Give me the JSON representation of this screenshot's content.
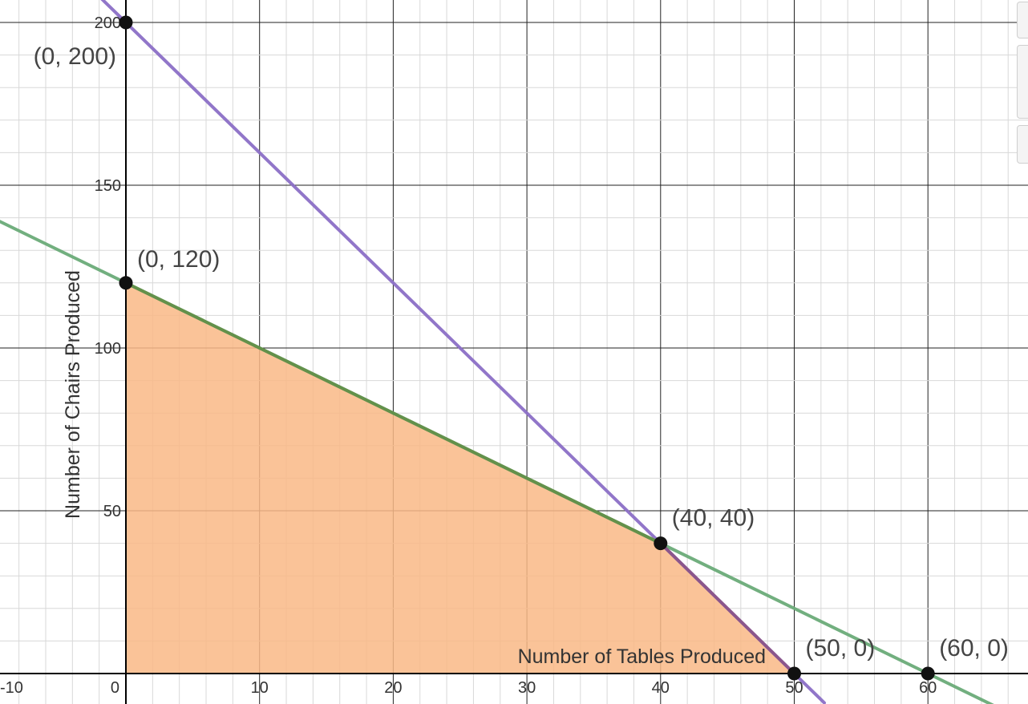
{
  "chart_data": {
    "type": "line",
    "xlabel": "Number of Tables Produced",
    "ylabel": "Number of Chairs Produced",
    "xlim": [
      -10,
      66
    ],
    "ylim": [
      -9,
      208
    ],
    "x_ticks": [
      {
        "value": -10,
        "label": "-10"
      },
      {
        "value": 0,
        "label": "0"
      },
      {
        "value": 10,
        "label": "10"
      },
      {
        "value": 20,
        "label": "20"
      },
      {
        "value": 30,
        "label": "30"
      },
      {
        "value": 40,
        "label": "40"
      },
      {
        "value": 50,
        "label": "50"
      },
      {
        "value": 60,
        "label": "60"
      }
    ],
    "y_ticks": [
      {
        "value": 50,
        "label": "50"
      },
      {
        "value": 100,
        "label": "100"
      },
      {
        "value": 150,
        "label": "150"
      },
      {
        "value": 200,
        "label": "200"
      }
    ],
    "grid": true,
    "series": [
      {
        "color": "#8b6fc6",
        "points": [
          [
            -2,
            208
          ],
          [
            52.25,
            -9
          ]
        ]
      },
      {
        "color": "#6aab78",
        "points": [
          [
            -10,
            140
          ],
          [
            66,
            -12
          ]
        ]
      }
    ],
    "feasible_region": {
      "color": "#f9b886",
      "boundary_color": "#5f8a3e",
      "vertices": [
        [
          0,
          0
        ],
        [
          0,
          120
        ],
        [
          40,
          40
        ],
        [
          50,
          0
        ]
      ]
    },
    "points": [
      {
        "x": 0,
        "y": 200,
        "label": "(0, 200)"
      },
      {
        "x": 0,
        "y": 120,
        "label": "(0, 120)"
      },
      {
        "x": 40,
        "y": 40,
        "label": "(40, 40)"
      },
      {
        "x": 50,
        "y": 0,
        "label": "(50, 0)"
      },
      {
        "x": 60,
        "y": 0,
        "label": "(60, 0)"
      }
    ]
  }
}
